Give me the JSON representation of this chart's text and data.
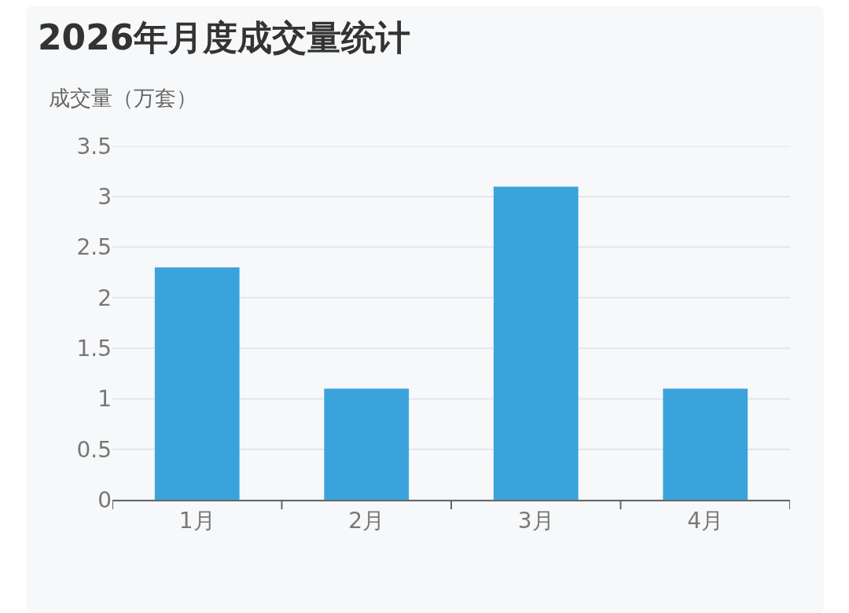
{
  "chart_data": {
    "type": "bar",
    "title": "2026年月度成交量统计",
    "ylabel": "成交量（万套）",
    "categories": [
      "1月",
      "2月",
      "3月",
      "4月"
    ],
    "values": [
      2.3,
      1.1,
      3.1,
      1.1
    ],
    "color": "#3ba3db",
    "ylim": [
      0,
      3.5
    ],
    "yticks": [
      0,
      0.5,
      1,
      1.5,
      2,
      2.5,
      3,
      3.5
    ],
    "grid": "y"
  }
}
